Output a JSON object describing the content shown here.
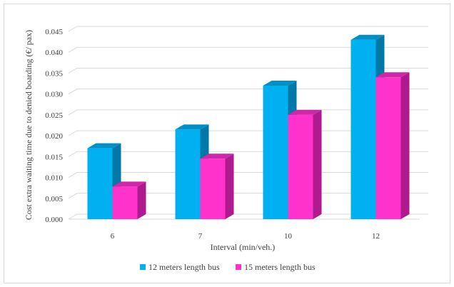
{
  "chart_data": {
    "type": "bar",
    "title": "",
    "xlabel": "Interval (min/veh.)",
    "ylabel": "Cost extra waiting time due to denied boarding (€/ pax)",
    "categories": [
      "6",
      "7",
      "10",
      "12"
    ],
    "series": [
      {
        "name": "12 meters length bus",
        "values": [
          0.017,
          0.0215,
          0.032,
          0.043
        ],
        "color": "#00b0f0",
        "side_color": "#0078a8",
        "top_color": "#0090c8"
      },
      {
        "name": "15 meters length bus",
        "values": [
          0.0078,
          0.0145,
          0.025,
          0.034
        ],
        "color": "#ff33cc",
        "side_color": "#b01a8f",
        "top_color": "#d026a8"
      }
    ],
    "ylim": [
      0,
      0.045
    ],
    "yticks": [
      "0.000",
      "0.005",
      "0.010",
      "0.015",
      "0.020",
      "0.025",
      "0.030",
      "0.035",
      "0.040",
      "0.045"
    ],
    "grid": true,
    "legend_position": "bottom",
    "three_d": true
  }
}
